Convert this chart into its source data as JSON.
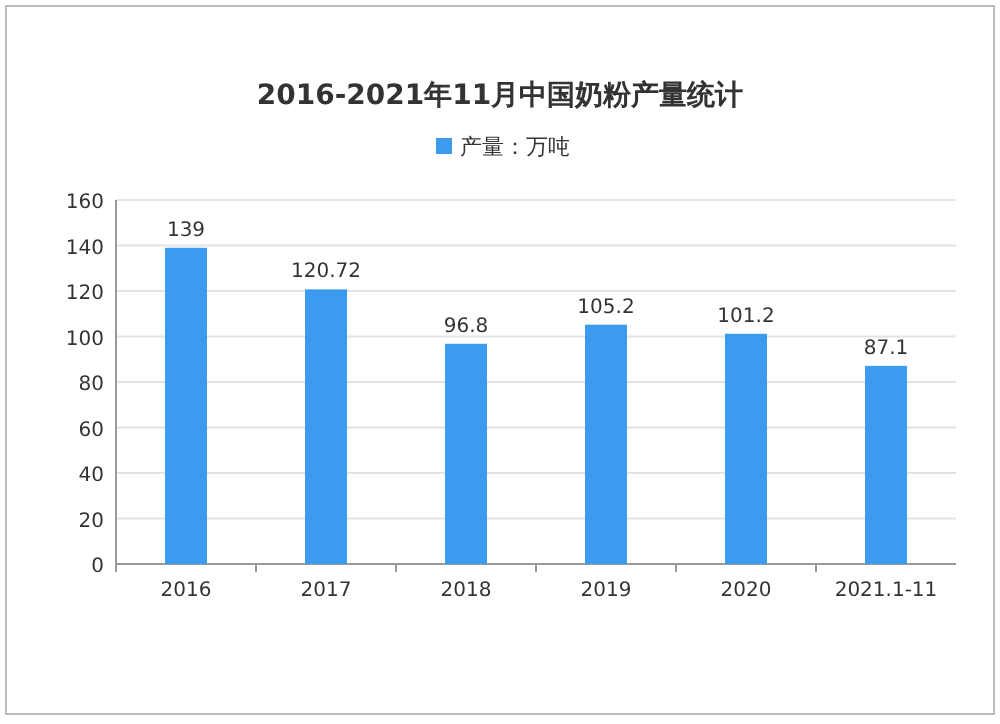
{
  "chart_data": {
    "type": "bar",
    "title": "2016-2021年11月中国奶粉产量统计",
    "categories": [
      "2016",
      "2017",
      "2018",
      "2019",
      "2020",
      "2021.1-11"
    ],
    "series": [
      {
        "name": "产量：万吨",
        "color": "#3a9bef",
        "values": [
          139,
          120.72,
          96.8,
          105.2,
          101.2,
          87.1
        ]
      }
    ],
    "ylim": [
      0,
      160
    ],
    "yticks": [
      0,
      20,
      40,
      60,
      80,
      100,
      120,
      140,
      160
    ],
    "grid": "y",
    "legend": "top",
    "data_labels": true
  }
}
